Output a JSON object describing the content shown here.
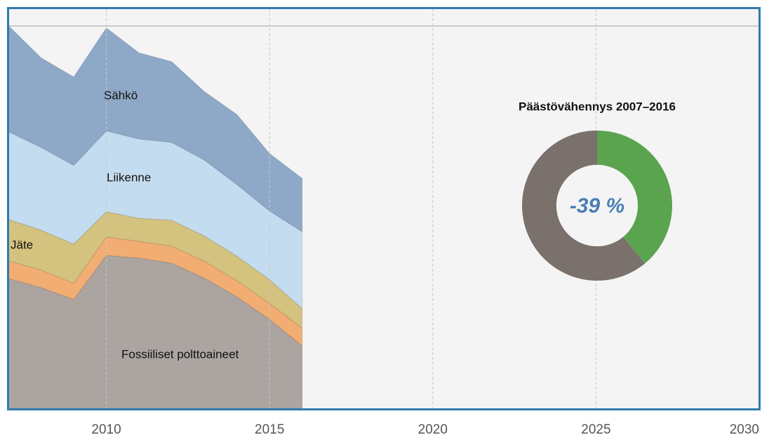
{
  "chart_data": [
    {
      "type": "stacked_area",
      "x": [
        2007,
        2008,
        2009,
        2010,
        2011,
        2012,
        2013,
        2014,
        2015,
        2016
      ],
      "xlim": [
        2007,
        2030
      ],
      "xticks": [
        2010,
        2015,
        2020,
        2025,
        2030
      ],
      "ylim": [
        0,
        100
      ],
      "grid": true,
      "series": [
        {
          "name": "Fossiiliset polttoaineet",
          "color": "#aba4a0",
          "values": [
            34.1,
            31.7,
            28.6,
            40.1,
            39.4,
            38.1,
            34.2,
            29.3,
            23.4,
            16.5
          ]
        },
        {
          "color": "#f2ad73",
          "values": [
            4.6,
            4.6,
            4.2,
            4.8,
            4.4,
            4.4,
            4.4,
            4.2,
            4.2,
            4.6
          ]
        },
        {
          "name": "Jäte",
          "color": "#d4c27f",
          "values": [
            10.8,
            10.4,
            10.3,
            6.6,
            6.0,
            6.8,
            6.6,
            6.4,
            6.2,
            5.1
          ]
        },
        {
          "name": "Liikenne",
          "color": "#c4dcef",
          "values": [
            22.9,
            21.6,
            20.5,
            21.1,
            20.7,
            20.3,
            19.8,
            18.7,
            17.9,
            20.1
          ]
        },
        {
          "name": "Sähkö",
          "color": "#8ea9c8",
          "values": [
            27.7,
            23.4,
            23.1,
            26.9,
            22.5,
            21.1,
            17.9,
            18.3,
            15.0,
            13.9
          ]
        }
      ]
    },
    {
      "type": "donut",
      "title": "Päästövähennys 2007–2016",
      "center_label": "-39 %",
      "values": [
        39,
        61
      ],
      "colors": [
        "#5ba44f",
        "#7a706c"
      ]
    }
  ]
}
